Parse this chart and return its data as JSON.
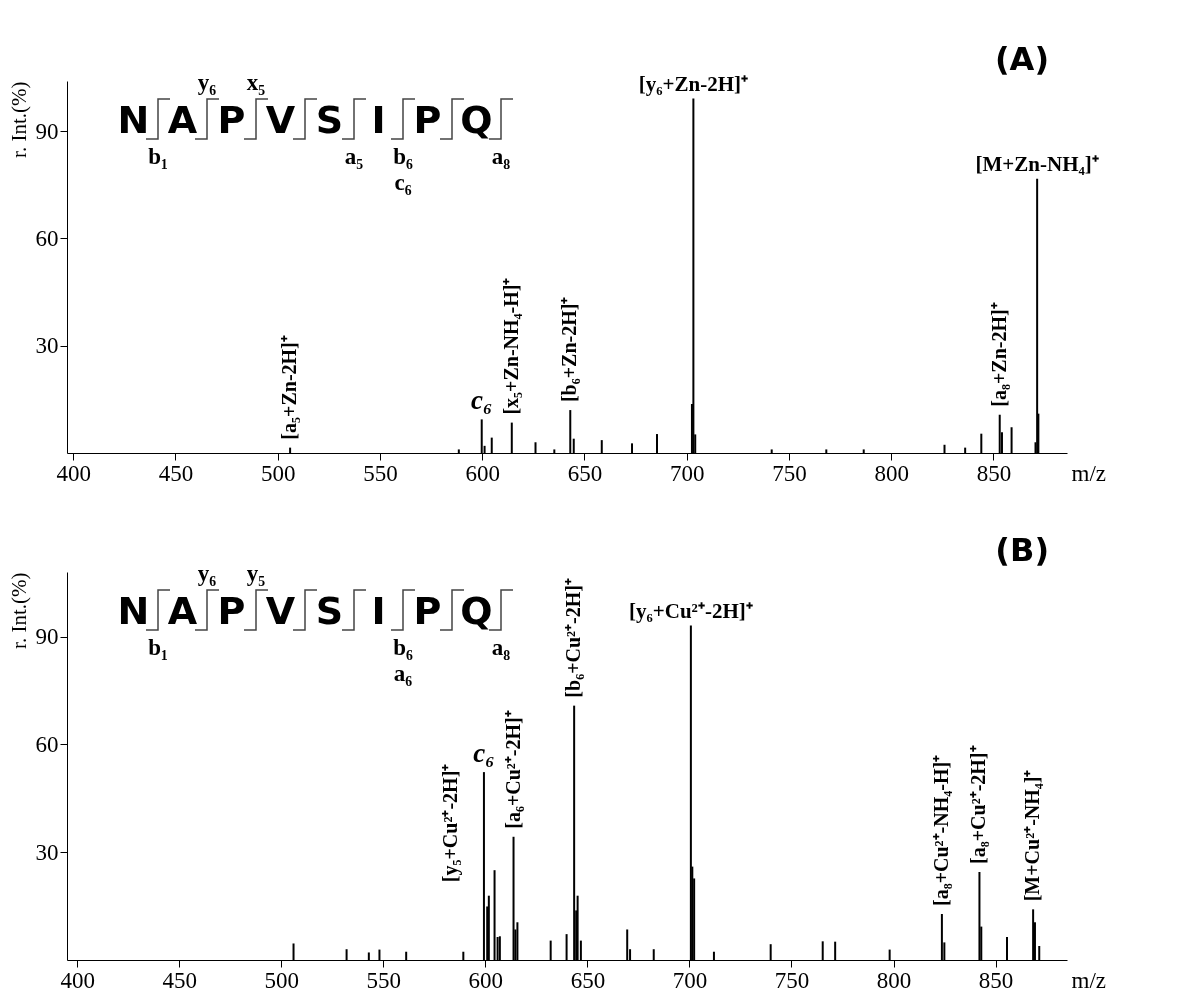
{
  "chart_data": [
    {
      "type": "bar",
      "color": "#000000",
      "xlabel": "m/z",
      "ylabel": "r. Int.(%)",
      "xlim": [
        397,
        886
      ],
      "ylim": [
        0,
        104
      ],
      "xticks": [
        400,
        450,
        500,
        550,
        600,
        650,
        700,
        750,
        800,
        850
      ],
      "yticks": [
        30,
        60,
        90
      ],
      "x": [
        506.1,
        588.6,
        599.8,
        601.2,
        604.7,
        614.5,
        626.1,
        635.3,
        643.1,
        644.8,
        658.5,
        673.3,
        685.5,
        702.6,
        703.3,
        704.2,
        741.6,
        768.3,
        786.6,
        826.1,
        836.2,
        844.1,
        853.1,
        854.2,
        858.9,
        870.6,
        871.4,
        872
      ],
      "values": [
        1.5,
        1,
        9.4,
        2,
        4.3,
        8.5,
        3,
        1,
        12,
        4,
        3.6,
        2.7,
        5.3,
        13.7,
        99.1,
        5.2,
        1,
        1,
        1,
        2.3,
        1.5,
        5.4,
        10.7,
        5.8,
        7.2,
        3,
        76.7,
        11
      ],
      "annotations": [
        "(A)",
        "N",
        "A",
        "P",
        "V",
        "S",
        "I",
        "P",
        "Q",
        "y₆",
        "x₅",
        "b₁",
        "a₅",
        "b₆",
        "c₆",
        "a₈",
        {
          "text": "[a₅+Zn-2H]⁺",
          "x": 506.1,
          "y": 1.5
        },
        {
          "text": "c₆",
          "x": 599.8,
          "y": 9.4
        },
        {
          "text": "[x₅+Zn-NH₄-H]⁺",
          "x": 614.5,
          "y": 8.5
        },
        {
          "text": "[b₆+Zn-2H]⁺",
          "x": 643.1,
          "y": 12
        },
        {
          "text": "[y₆+Zn-2H]⁺",
          "x": 703.3,
          "y": 99.1
        },
        {
          "text": "[a₈+Zn-2H]⁺",
          "x": 853.1,
          "y": 10.7
        },
        {
          "text": "[M+Zn-NH₄]⁺",
          "x": 871.4,
          "y": 76.7
        }
      ]
    },
    {
      "type": "bar",
      "color": "#000000",
      "xlabel": "m/z",
      "ylabel": "r. Int.(%)",
      "xlim": [
        395,
        885
      ],
      "ylim": [
        0,
        108
      ],
      "xticks": [
        400,
        450,
        500,
        550,
        600,
        650,
        700,
        750,
        800,
        850
      ],
      "yticks": [
        30,
        60,
        90
      ],
      "x": [
        506,
        532,
        542.9,
        548.1,
        561.2,
        589.2,
        599.3,
        600.9,
        601.7,
        604.5,
        606,
        607.1,
        613.8,
        614.7,
        615.7,
        632,
        639.8,
        643.5,
        644.5,
        645.2,
        646.8,
        669.5,
        670.9,
        682.5,
        700.7,
        701.4,
        702.3,
        712,
        739.8,
        765.3,
        771.4,
        798.1,
        823.7,
        824.9,
        842.1,
        843,
        855.6,
        868.4,
        869.3,
        871.4
      ],
      "values": [
        4.6,
        3,
        2.1,
        2.9,
        2.3,
        2.3,
        52.3,
        14.9,
        17.9,
        25,
        6.4,
        6.6,
        34.3,
        8.5,
        10.5,
        5.4,
        7.2,
        70.8,
        13.8,
        17.9,
        5.4,
        8.5,
        3,
        3,
        93.1,
        26,
        22.7,
        2.3,
        4.4,
        5.2,
        5.1,
        2.9,
        12.8,
        4.9,
        24.5,
        9.3,
        6.4,
        14.1,
        10.5,
        3.9
      ],
      "annotations": [
        "(B)",
        "N",
        "A",
        "P",
        "V",
        "S",
        "I",
        "P",
        "Q",
        "y₆",
        "y₅",
        "b₁",
        "b₆",
        "a₆",
        "a₈",
        {
          "text": "c₆",
          "x": 599.3,
          "y": 52.3
        },
        {
          "text": "[y₅+Cu²⁺-2H]⁺",
          "x": 604.5,
          "y": 25
        },
        {
          "text": "[a₆+Cu²⁺-2H]⁺",
          "x": 613.8,
          "y": 34.3
        },
        {
          "text": "[b₆+Cu²⁺-2H]⁺",
          "x": 643.5,
          "y": 70.8
        },
        {
          "text": "[y₆+Cu²⁺-2H]⁺",
          "x": 700.7,
          "y": 93.1
        },
        {
          "text": "[a₈+Cu²⁺-NH₄-H]⁺",
          "x": 823.7,
          "y": 12.8
        },
        {
          "text": "[a₈+Cu²⁺-2H]⁺",
          "x": 842.1,
          "y": 24.5
        },
        {
          "text": "[M+Cu²⁺-NH₄]⁺",
          "x": 868.4,
          "y": 14.1
        }
      ]
    }
  ]
}
